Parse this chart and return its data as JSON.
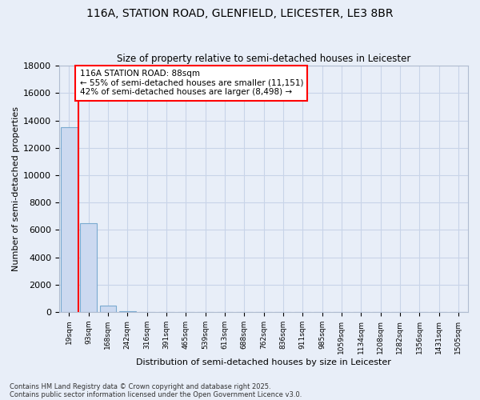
{
  "title1": "116A, STATION ROAD, GLENFIELD, LEICESTER, LE3 8BR",
  "title2": "Size of property relative to semi-detached houses in Leicester",
  "xlabel": "Distribution of semi-detached houses by size in Leicester",
  "ylabel": "Number of semi-detached properties",
  "categories": [
    "19sqm",
    "93sqm",
    "168sqm",
    "242sqm",
    "316sqm",
    "391sqm",
    "465sqm",
    "539sqm",
    "613sqm",
    "688sqm",
    "762sqm",
    "836sqm",
    "911sqm",
    "985sqm",
    "1059sqm",
    "1134sqm",
    "1208sqm",
    "1282sqm",
    "1356sqm",
    "1431sqm",
    "1505sqm"
  ],
  "values": [
    13500,
    6500,
    450,
    60,
    10,
    3,
    2,
    1,
    1,
    0,
    0,
    0,
    0,
    0,
    0,
    0,
    0,
    0,
    0,
    0,
    0
  ],
  "bar_color": "#ccd9f0",
  "bar_edge_color": "#7aaad0",
  "property_line_color": "red",
  "annotation_title": "116A STATION ROAD: 88sqm",
  "annotation_line1": "← 55% of semi-detached houses are smaller (11,151)",
  "annotation_line2": "42% of semi-detached houses are larger (8,498) →",
  "annotation_box_color": "white",
  "annotation_box_edge": "red",
  "ylim": [
    0,
    18000
  ],
  "yticks": [
    0,
    2000,
    4000,
    6000,
    8000,
    10000,
    12000,
    14000,
    16000,
    18000
  ],
  "bg_color": "#e8eef8",
  "grid_color": "#c8d4e8",
  "footer1": "Contains HM Land Registry data © Crown copyright and database right 2025.",
  "footer2": "Contains public sector information licensed under the Open Government Licence v3.0."
}
